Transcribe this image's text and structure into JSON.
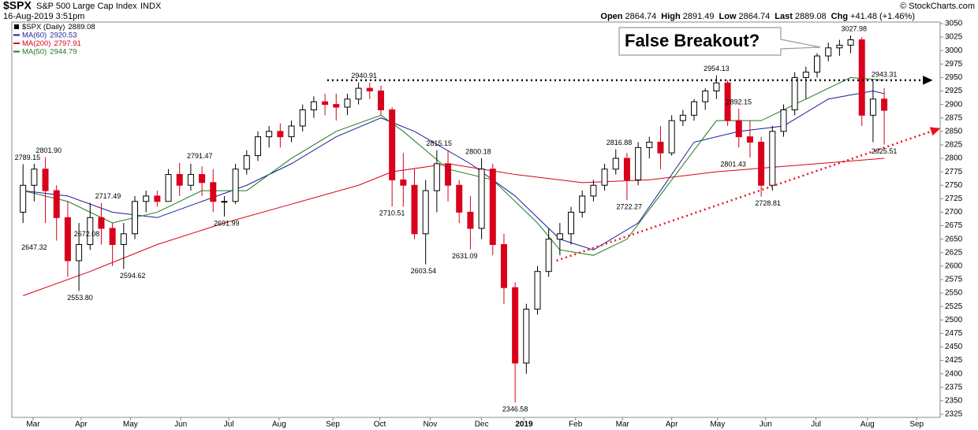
{
  "chart_data": {
    "type": "candlestick",
    "symbol": "$SPX",
    "name": "S&P 500 Large Cap Index",
    "exchange": "INDX",
    "date": "16-Aug-2019 3:51pm",
    "credit": "© StockCharts.com",
    "quote": [
      {
        "label": "Open",
        "value": 2864.74
      },
      {
        "label": "High",
        "value": 2891.49
      },
      {
        "label": "Low",
        "value": 2864.74
      },
      {
        "label": "Last",
        "value": 2889.08
      },
      {
        "label": "Chg",
        "value": "+41.48 (+1.46%)"
      }
    ],
    "price_legend": {
      "name": "$SPX (Daily)",
      "last": 2889.08
    },
    "annotation": "False Breakout?",
    "up_color": "#000000",
    "down_color": "#d9001b",
    "open": [
      2700,
      2750,
      2780,
      2740,
      2690,
      2610,
      2640,
      2690,
      2670,
      2640,
      2660,
      2720,
      2730,
      2720,
      2770,
      2750,
      2770,
      2755,
      2720,
      2720,
      2780,
      2805,
      2840,
      2850,
      2840,
      2860,
      2890,
      2905,
      2900,
      2895,
      2910,
      2930,
      2925,
      2890,
      2760,
      2750,
      2660,
      2740,
      2790,
      2750,
      2700,
      2670,
      2780,
      2640,
      2560,
      2420,
      2520,
      2590,
      2650,
      2660,
      2700,
      2730,
      2750,
      2780,
      2800,
      2760,
      2820,
      2830,
      2810,
      2870,
      2880,
      2905,
      2925,
      2940,
      2870,
      2840,
      2830,
      2750,
      2850,
      2890,
      2950,
      2960,
      2990,
      3005,
      3010,
      3020,
      2880,
      2910
    ],
    "high": [
      2789.15,
      2790,
      2801.9,
      2750,
      2720,
      2680,
      2717.49,
      2717,
      2680,
      2680,
      2730,
      2740,
      2740,
      2780,
      2791.47,
      2790,
      2785,
      2780,
      2730,
      2790,
      2815,
      2850,
      2860,
      2865,
      2870,
      2900,
      2915,
      2920,
      2920,
      2920,
      2940.91,
      2940,
      2935,
      2895,
      2810,
      2780,
      2760,
      2815.15,
      2815,
      2760,
      2730,
      2800.18,
      2790,
      2660,
      2570,
      2530,
      2600,
      2670,
      2680,
      2710,
      2740,
      2760,
      2790,
      2816.88,
      2810,
      2830,
      2840,
      2860,
      2880,
      2890,
      2910,
      2930,
      2954.13,
      2945,
      2892.15,
      2870,
      2840,
      2860,
      2900,
      2960,
      2970,
      2995,
      3015,
      3020,
      3027.98,
      3025,
      2943.31,
      2930
    ],
    "low": [
      2680,
      2720,
      2680,
      2647.32,
      2580,
      2553.8,
      2630,
      2640,
      2600,
      2594.62,
      2650,
      2700,
      2710,
      2720,
      2730,
      2740,
      2730,
      2700,
      2691.99,
      2715,
      2770,
      2795,
      2820,
      2820,
      2830,
      2850,
      2875,
      2880,
      2870,
      2880,
      2900,
      2910,
      2880,
      2710.51,
      2710,
      2650,
      2603.54,
      2700,
      2720,
      2680,
      2631.09,
      2650,
      2620,
      2530,
      2346.58,
      2400,
      2510,
      2580,
      2620,
      2640,
      2690,
      2720,
      2740,
      2770,
      2722.27,
      2750,
      2800,
      2780,
      2805,
      2860,
      2870,
      2890,
      2910,
      2860,
      2820,
      2801.43,
      2728.81,
      2740,
      2840,
      2880,
      2910,
      2950,
      2980,
      2990,
      2995,
      2860,
      2830,
      2825.51
    ],
    "close": [
      2750,
      2780,
      2740,
      2690,
      2610,
      2640,
      2690,
      2670,
      2640,
      2660,
      2720,
      2730,
      2720,
      2770,
      2750,
      2770,
      2755,
      2720,
      2720,
      2780,
      2805,
      2840,
      2850,
      2840,
      2860,
      2890,
      2905,
      2900,
      2895,
      2910,
      2930,
      2925,
      2890,
      2760,
      2750,
      2660,
      2740,
      2790,
      2750,
      2700,
      2670,
      2780,
      2640,
      2560,
      2420,
      2520,
      2590,
      2650,
      2660,
      2700,
      2730,
      2750,
      2780,
      2800,
      2760,
      2820,
      2830,
      2810,
      2870,
      2880,
      2905,
      2925,
      2940,
      2870,
      2840,
      2830,
      2750,
      2850,
      2890,
      2950,
      2960,
      2990,
      3005,
      3010,
      3020,
      2880,
      2910,
      2889.08
    ],
    "series": [
      {
        "name": "MA(60)",
        "last": 2920.53,
        "color": "#1c1c9c",
        "x": [
          0,
          4,
          8,
          12,
          16,
          20,
          24,
          28,
          32,
          35,
          40,
          44,
          48,
          51,
          55,
          60,
          64,
          68,
          72,
          76,
          77
        ],
        "values": [
          2740,
          2730,
          2700,
          2690,
          2720,
          2750,
          2790,
          2840,
          2875,
          2850,
          2790,
          2730,
          2650,
          2630,
          2680,
          2830,
          2850,
          2860,
          2910,
          2925,
          2920
        ]
      },
      {
        "name": "MA(200)",
        "last": 2797.91,
        "color": "#d9001b",
        "x": [
          0,
          6,
          12,
          18,
          24,
          30,
          33,
          38,
          44,
          50,
          56,
          62,
          68,
          77
        ],
        "values": [
          2545,
          2590,
          2640,
          2680,
          2715,
          2750,
          2775,
          2790,
          2770,
          2755,
          2760,
          2775,
          2785,
          2800
        ]
      },
      {
        "name": "MA(50)",
        "last": 2944.79,
        "color": "#1e7a1e",
        "x": [
          0,
          4,
          8,
          12,
          16,
          20,
          24,
          28,
          32,
          34,
          38,
          42,
          46,
          48,
          51,
          54,
          58,
          62,
          66,
          70,
          74,
          77
        ],
        "values": [
          2740,
          2720,
          2680,
          2700,
          2740,
          2740,
          2800,
          2850,
          2880,
          2850,
          2780,
          2760,
          2680,
          2630,
          2620,
          2650,
          2760,
          2870,
          2870,
          2910,
          2950,
          2945
        ]
      }
    ],
    "lines": [
      {
        "color": "#000000",
        "x": [
          27.2,
          81.2
        ],
        "values": [
          2945,
          2945
        ]
      },
      {
        "color": "#e8141e",
        "x": [
          47.7,
          81.9
        ],
        "values": [
          2610,
          2855
        ]
      }
    ],
    "price_labels": [
      {
        "x": 0.4,
        "value": 2789.15
      },
      {
        "x": 2.3,
        "value": 2801.9,
        "label": "2801.90"
      },
      {
        "x": 1,
        "value": 2647.32
      },
      {
        "x": 7.6,
        "value": 2717.49
      },
      {
        "x": 5.7,
        "value": 2672.08
      },
      {
        "x": 5.1,
        "value": 2553.8,
        "label": "2553.80"
      },
      {
        "x": 9.8,
        "value": 2594.62
      },
      {
        "x": 15.8,
        "value": 2791.47
      },
      {
        "x": 18.2,
        "value": 2691.99
      },
      {
        "x": 30.5,
        "value": 2940.91
      },
      {
        "x": 33,
        "value": 2710.51
      },
      {
        "x": 37.2,
        "value": 2815.15
      },
      {
        "x": 40.7,
        "value": 2800.18
      },
      {
        "x": 35.8,
        "value": 2603.54
      },
      {
        "x": 39.5,
        "value": 2631.09
      },
      {
        "x": 44,
        "value": 2346.58
      },
      {
        "x": 53.3,
        "value": 2816.88
      },
      {
        "x": 54.2,
        "value": 2722.27
      },
      {
        "x": 62,
        "value": 2954.13
      },
      {
        "x": 64,
        "value": 2892.15
      },
      {
        "x": 63.5,
        "value": 2801.43
      },
      {
        "x": 66.6,
        "value": 2728.81
      },
      {
        "x": 74.3,
        "value": 3027.98
      },
      {
        "x": 77,
        "value": 2943.31
      },
      {
        "x": 77,
        "value": 2825.51
      }
    ],
    "xlim": [
      -1,
      82
    ],
    "xticks": [
      {
        "value": 0.9,
        "label": "Mar"
      },
      {
        "value": 5.2,
        "label": "Apr"
      },
      {
        "value": 9.6,
        "label": "May"
      },
      {
        "value": 14.1,
        "label": "Jun"
      },
      {
        "value": 18.4,
        "label": "Jul"
      },
      {
        "value": 22.9,
        "label": "Aug"
      },
      {
        "value": 27.7,
        "label": "Sep"
      },
      {
        "value": 31.9,
        "label": "Oct"
      },
      {
        "value": 36.4,
        "label": "Nov"
      },
      {
        "value": 41,
        "label": "Dec"
      },
      {
        "value": 44.8,
        "label": "2019"
      },
      {
        "value": 49.4,
        "label": "Feb"
      },
      {
        "value": 53.6,
        "label": "Mar"
      },
      {
        "value": 58,
        "label": "Apr"
      },
      {
        "value": 62.1,
        "label": "May"
      },
      {
        "value": 66.4,
        "label": "Jun"
      },
      {
        "value": 70.9,
        "label": "Jul"
      },
      {
        "value": 75.5,
        "label": "Aug"
      },
      {
        "value": 79.9,
        "label": "Sep"
      }
    ],
    "ylim": [
      2325,
      3050
    ],
    "yticks": [
      2325,
      2350,
      2375,
      2400,
      2425,
      2450,
      2475,
      2500,
      2525,
      2550,
      2575,
      2600,
      2625,
      2650,
      2675,
      2700,
      2725,
      2750,
      2775,
      2800,
      2825,
      2850,
      2875,
      2900,
      2925,
      2950,
      2975,
      3000,
      3025,
      3050
    ],
    "grid": false
  }
}
